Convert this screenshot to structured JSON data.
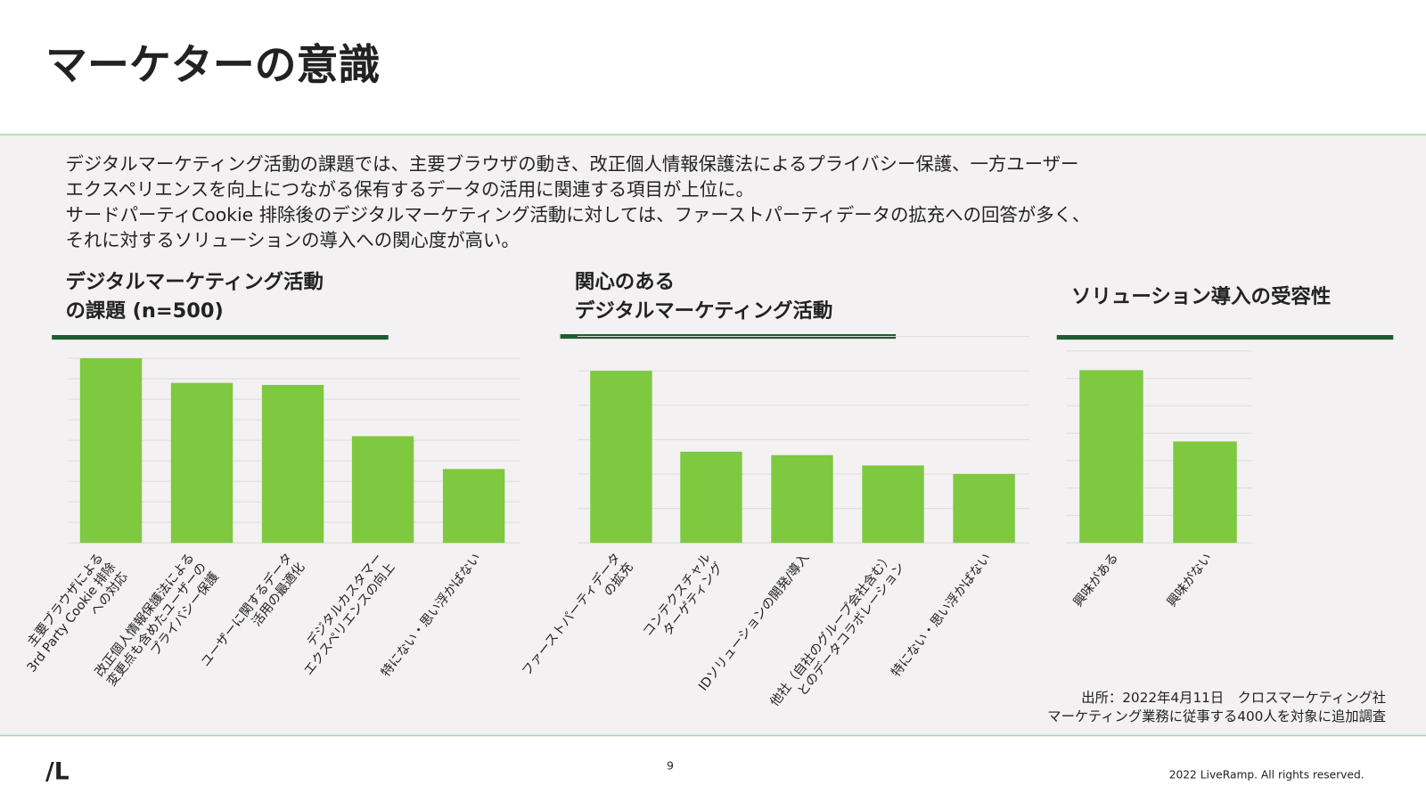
{
  "header": {
    "title": "マーケターの意識"
  },
  "body": {
    "lines": [
      "デジタルマーケティング活動の課題では、主要ブラウザの動き、改正個人情報保護法によるプライバシー保護、一方ユーザー",
      "エクスペリエンスを向上につながる保有するデータの活用に関連する項目が上位に。",
      "サードパーティCookie 排除後のデジタルマーケティング活動に対しては、ファーストパーティデータの拡充への回答が多く、",
      "それに対するソリューションの導入への関心度が高い。"
    ]
  },
  "chart_data": [
    {
      "type": "bar",
      "title": "デジタルマーケティング活動\nの課題 (n=500)",
      "color": "#7ec93f",
      "categories": [
        "主要ブラウザによる\n3rd Party Cookie 排除\nへの対応",
        "改正個人情報保護法による\n変更点も含めたユーザーの\nプライバシー保護",
        "ユーザーに関するデータ\n活用の最適化",
        "デジタルカスタマー\nエクスペリエンスの向上",
        "特にない・思い浮かばない"
      ],
      "values": [
        45,
        39,
        38.5,
        26,
        18
      ],
      "ylim": [
        0,
        45
      ],
      "yticks": [
        0,
        5,
        10,
        15,
        20,
        25,
        30,
        35,
        40,
        45
      ],
      "grid": true
    },
    {
      "type": "bar",
      "title": "関心のある\nデジタルマーケティング活動",
      "color": "#7ec93f",
      "categories": [
        "ファーストパーティデータ\nの拡充",
        "コンテクスチャル\nターゲティング",
        "IDソリューションの開発/導入",
        "他社（自社のグループ会社含む）\nとのデータコラボレーション",
        "特にない・思い浮かばない"
      ],
      "values": [
        50,
        26.5,
        25.5,
        22.5,
        20
      ],
      "ylim": [
        0,
        60
      ],
      "yticks": [
        0,
        10,
        20,
        30,
        40,
        50,
        60
      ],
      "grid": true
    },
    {
      "type": "bar",
      "title": "ソリューション導入の受容性",
      "color": "#7ec93f",
      "categories": [
        "興味がある",
        "興味がない"
      ],
      "values": [
        63,
        37
      ],
      "ylim": [
        0,
        70
      ],
      "yticks": [
        0,
        10,
        20,
        30,
        40,
        50,
        60,
        70
      ],
      "grid": true
    }
  ],
  "source": {
    "lines": [
      "出所：2022年4月11日　クロスマーケティング社",
      "マーケティング業務に従事する400人を対象に追加調査"
    ]
  },
  "footer": {
    "logo": "/L",
    "page": "9",
    "copyright": "2022 LiveRamp. All rights reserved."
  }
}
